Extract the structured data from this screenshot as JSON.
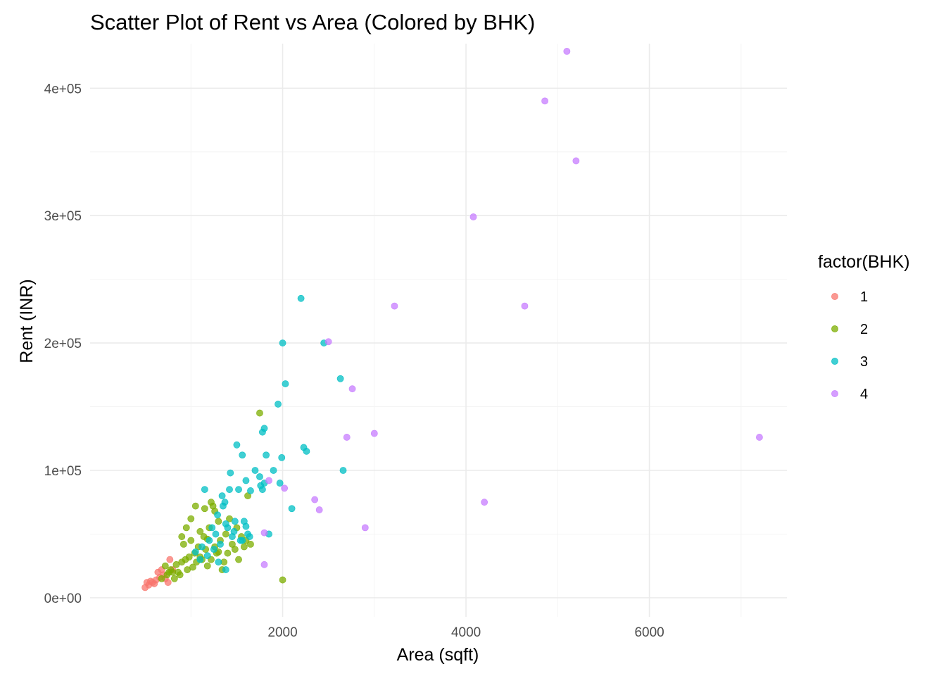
{
  "chart_data": {
    "type": "scatter",
    "title": "Scatter Plot of Rent vs Area (Colored by BHK)",
    "xlabel": "Area (sqft)",
    "ylabel": "Rent (INR)",
    "xlim": [
      -100,
      7500
    ],
    "ylim": [
      -15000,
      435000
    ],
    "x_ticks": [
      {
        "value": 2000,
        "label": "2000"
      },
      {
        "value": 4000,
        "label": "4000"
      },
      {
        "value": 6000,
        "label": "6000"
      }
    ],
    "y_ticks": [
      {
        "value": 0,
        "label": "0e+00"
      },
      {
        "value": 100000,
        "label": "1e+05"
      },
      {
        "value": 200000,
        "label": "2e+05"
      },
      {
        "value": 300000,
        "label": "3e+05"
      },
      {
        "value": 400000,
        "label": "4e+05"
      }
    ],
    "x_minor": [
      1000,
      3000,
      5000,
      7000
    ],
    "y_minor": [
      50000,
      150000,
      250000,
      350000
    ],
    "grid": true,
    "legend": {
      "title": "factor(BHK)",
      "position": "right"
    },
    "point_alpha": 0.75,
    "series": [
      {
        "name": "1",
        "color": "#F8766D",
        "points": [
          [
            500,
            8000
          ],
          [
            520,
            12000
          ],
          [
            540,
            10000
          ],
          [
            560,
            13000
          ],
          [
            580,
            12000
          ],
          [
            600,
            11000
          ],
          [
            620,
            14000
          ],
          [
            640,
            20000
          ],
          [
            660,
            16000
          ],
          [
            680,
            22000
          ],
          [
            700,
            18000
          ],
          [
            720,
            15000
          ],
          [
            750,
            12000
          ],
          [
            770,
            30000
          ],
          [
            800,
            22000
          ]
        ]
      },
      {
        "name": "2",
        "color": "#7CAE00",
        "points": [
          [
            680,
            15000
          ],
          [
            720,
            25000
          ],
          [
            740,
            18000
          ],
          [
            760,
            20000
          ],
          [
            780,
            22000
          ],
          [
            800,
            20000
          ],
          [
            820,
            15000
          ],
          [
            840,
            26000
          ],
          [
            860,
            20000
          ],
          [
            880,
            18000
          ],
          [
            900,
            28000
          ],
          [
            920,
            42000
          ],
          [
            940,
            30000
          ],
          [
            960,
            22000
          ],
          [
            980,
            32000
          ],
          [
            1000,
            45000
          ],
          [
            1020,
            24000
          ],
          [
            1040,
            35000
          ],
          [
            1060,
            28000
          ],
          [
            1080,
            40000
          ],
          [
            1100,
            52000
          ],
          [
            1120,
            30000
          ],
          [
            1140,
            48000
          ],
          [
            1160,
            38000
          ],
          [
            1180,
            25000
          ],
          [
            1200,
            55000
          ],
          [
            1220,
            30000
          ],
          [
            1240,
            72000
          ],
          [
            1260,
            40000
          ],
          [
            1280,
            35000
          ],
          [
            1300,
            60000
          ],
          [
            1320,
            45000
          ],
          [
            1340,
            22000
          ],
          [
            1360,
            28000
          ],
          [
            1380,
            50000
          ],
          [
            1400,
            35000
          ],
          [
            1420,
            62000
          ],
          [
            1450,
            42000
          ],
          [
            1480,
            38000
          ],
          [
            1500,
            55000
          ],
          [
            1520,
            30000
          ],
          [
            1550,
            48000
          ],
          [
            1580,
            40000
          ],
          [
            1600,
            45000
          ],
          [
            1620,
            80000
          ],
          [
            1650,
            42000
          ],
          [
            1000,
            62000
          ],
          [
            1050,
            72000
          ],
          [
            1150,
            70000
          ],
          [
            1220,
            75000
          ],
          [
            1260,
            68000
          ],
          [
            1750,
            145000
          ],
          [
            2000,
            14000
          ],
          [
            900,
            48000
          ],
          [
            950,
            55000
          ],
          [
            1100,
            32000
          ],
          [
            1180,
            46000
          ],
          [
            1300,
            36000
          ]
        ]
      },
      {
        "name": "3",
        "color": "#00BFC4",
        "points": [
          [
            1050,
            36000
          ],
          [
            1100,
            30000
          ],
          [
            1120,
            40000
          ],
          [
            1150,
            85000
          ],
          [
            1180,
            33000
          ],
          [
            1200,
            45000
          ],
          [
            1230,
            55000
          ],
          [
            1250,
            38000
          ],
          [
            1270,
            50000
          ],
          [
            1290,
            65000
          ],
          [
            1300,
            28000
          ],
          [
            1320,
            42000
          ],
          [
            1350,
            72000
          ],
          [
            1370,
            75000
          ],
          [
            1380,
            22000
          ],
          [
            1400,
            55000
          ],
          [
            1420,
            85000
          ],
          [
            1430,
            98000
          ],
          [
            1450,
            48000
          ],
          [
            1470,
            52000
          ],
          [
            1500,
            120000
          ],
          [
            1520,
            85000
          ],
          [
            1540,
            45000
          ],
          [
            1560,
            112000
          ],
          [
            1580,
            60000
          ],
          [
            1600,
            92000
          ],
          [
            1620,
            50000
          ],
          [
            1640,
            48000
          ],
          [
            1650,
            84000
          ],
          [
            1700,
            100000
          ],
          [
            1750,
            95000
          ],
          [
            1780,
            130000
          ],
          [
            1800,
            133000
          ],
          [
            1820,
            112000
          ],
          [
            1850,
            50000
          ],
          [
            1900,
            100000
          ],
          [
            1950,
            152000
          ],
          [
            1970,
            90000
          ],
          [
            1990,
            110000
          ],
          [
            2000,
            200000
          ],
          [
            2030,
            168000
          ],
          [
            2100,
            70000
          ],
          [
            2200,
            235000
          ],
          [
            2230,
            118000
          ],
          [
            2260,
            115000
          ],
          [
            2450,
            200000
          ],
          [
            2630,
            172000
          ],
          [
            2660,
            100000
          ],
          [
            1760,
            88000
          ],
          [
            1560,
            45000
          ],
          [
            1480,
            60000
          ],
          [
            1380,
            58000
          ],
          [
            1600,
            56000
          ],
          [
            1800,
            90000
          ],
          [
            1780,
            85000
          ],
          [
            1340,
            80000
          ]
        ]
      },
      {
        "name": "4",
        "color": "#C77CFF",
        "points": [
          [
            1800,
            26000
          ],
          [
            1800,
            51000
          ],
          [
            1850,
            92000
          ],
          [
            2020,
            86000
          ],
          [
            2350,
            77000
          ],
          [
            2400,
            69000
          ],
          [
            2500,
            201000
          ],
          [
            2700,
            126000
          ],
          [
            2760,
            164000
          ],
          [
            2900,
            55000
          ],
          [
            3000,
            129000
          ],
          [
            3220,
            229000
          ],
          [
            4080,
            299000
          ],
          [
            4200,
            75000
          ],
          [
            4640,
            229000
          ],
          [
            4860,
            390000
          ],
          [
            5100,
            429000
          ],
          [
            5200,
            343000
          ],
          [
            7200,
            126000
          ]
        ]
      }
    ]
  }
}
